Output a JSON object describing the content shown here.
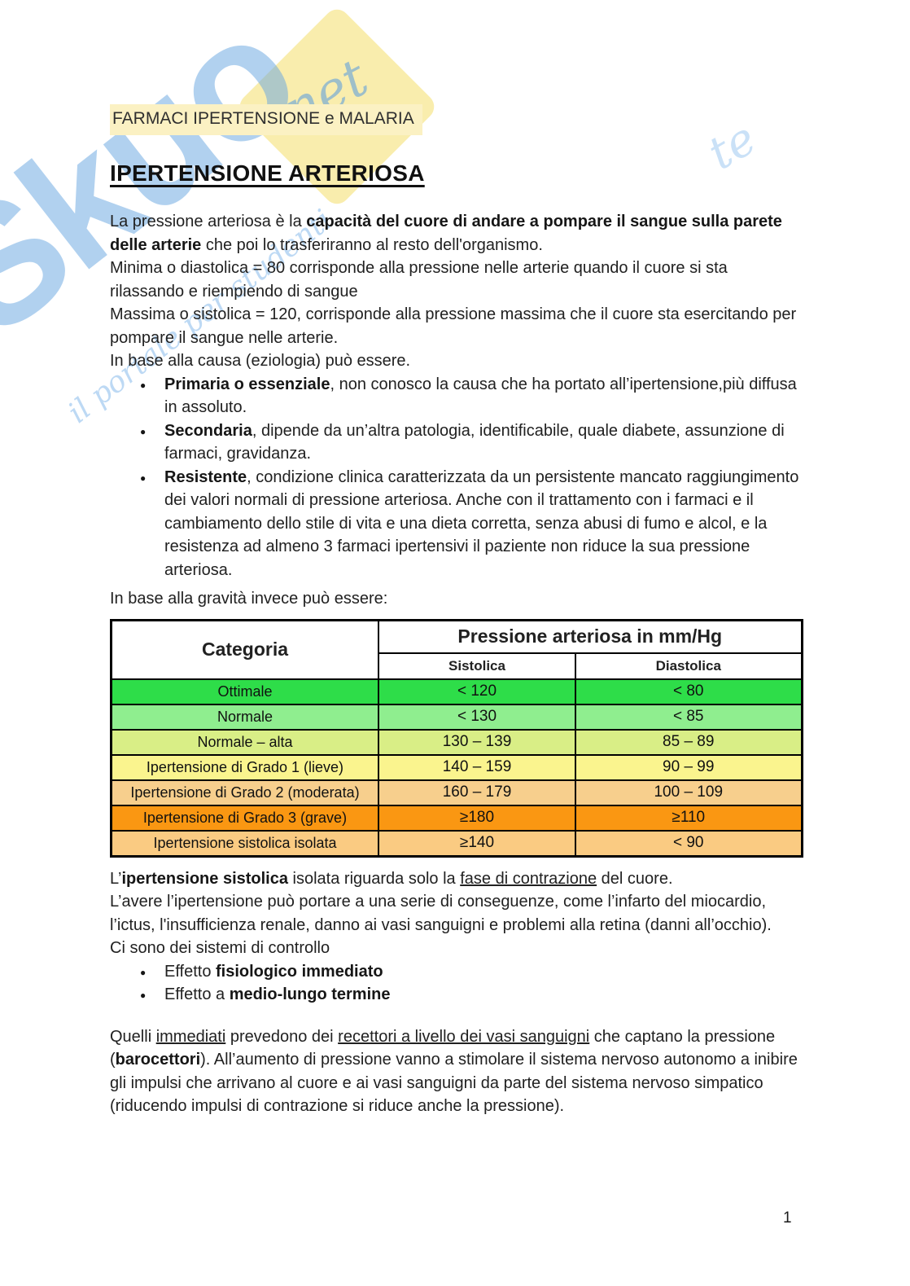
{
  "header": {
    "title": "FARMACI IPERTENSIONE e MALARIA",
    "heading": "IPERTENSIONE ARTERIOSA"
  },
  "intro": {
    "p1_a": "La pressione arteriosa è la ",
    "p1_b": "capacità del cuore di andare a pompare il sangue sulla parete delle arterie",
    "p1_c": " che poi lo trasferiranno al resto dell'organismo.",
    "p2": "Minima o diastolica = 80 corrisponde alla pressione nelle arterie quando il cuore si sta rilassando e riempiendo di sangue",
    "p3": "Massima o sistolica = 120, corrisponde alla pressione massima che il cuore sta esercitando per pompare il sangue nelle arterie.",
    "p4": "In base alla causa (eziologia) può essere."
  },
  "etiology_bullets": {
    "b1_bold": "Primaria o essenziale",
    "b1_rest": ", non conosco la causa che ha portato all’ipertensione,più diffusa in assoluto.",
    "b2_bold": "Secondaria",
    "b2_rest": ", dipende da un’altra patologia, identificabile, quale diabete, assunzione di farmaci, gravidanza.",
    "b3_bold": "Resistente",
    "b3_rest": ", condizione clinica caratterizzata da un persistente mancato raggiungimento dei valori normali di pressione arteriosa. Anche con il trattamento con i farmaci e il cambiamento dello stile di vita e una dieta corretta, senza abusi di fumo e alcol, e la resistenza ad almeno 3 farmaci ipertensivi il paziente non riduce la sua pressione arteriosa."
  },
  "gravity_intro": "In base alla gravità invece può essere:",
  "table": {
    "header": {
      "categoria": "Categoria",
      "pressure": "Pressione arteriosa in mm/Hg",
      "sistolica": "Sistolica",
      "diastolica": "Diastolica"
    },
    "rows": [
      {
        "label": "Ottimale",
        "sys": "< 120",
        "dia": "< 80",
        "color": "#2edd49",
        "style": "background:#2edd49"
      },
      {
        "label": "Normale",
        "sys": "< 130",
        "dia": "< 85",
        "color": "#8fee8f",
        "style": "background:#8fee8f"
      },
      {
        "label": "Normale – alta",
        "sys": "130 – 139",
        "dia": "85 – 89",
        "color": "#d9ee86",
        "style": "background:#d9ee86"
      },
      {
        "label": "Ipertensione di Grado 1 (lieve)",
        "sys": "140 – 159",
        "dia": "90 – 99",
        "color": "#faf48e",
        "style": "background:#faf48e"
      },
      {
        "label": "Ipertensione di Grado 2 (moderata)",
        "sys": "160 – 179",
        "dia": "100 – 109",
        "color": "#f7cf8d",
        "style": "background:#f7cf8d"
      },
      {
        "label": "Ipertensione di Grado 3 (grave)",
        "sys": "≥180",
        "dia": "≥110",
        "color": "#fa9712",
        "style": "background:#fa9712"
      },
      {
        "label": "Ipertensione sistolica isolata",
        "sys": "≥140",
        "dia": "< 90",
        "color": "#facb82",
        "style": "background:#facb82"
      }
    ]
  },
  "after_table": {
    "p1_a": "L’",
    "p1_b": "ipertensione sistolica",
    "p1_c": " isolata riguarda solo la ",
    "p1_d": "fase di contrazione",
    "p1_e": " del cuore.",
    "p2": "L’avere l’ipertensione può portare a una serie di conseguenze, come l’infarto del miocardio, l’ictus, l'insufficienza renale, danno ai vasi sanguigni e problemi alla retina (danni all’occhio).",
    "p3": "Ci sono dei sistemi di controllo"
  },
  "control_bullets": {
    "e1_a": "Effetto ",
    "e1_b": "fisiologico immediato",
    "e2_a": "Effetto a ",
    "e2_b": "medio-lungo termine"
  },
  "final": {
    "s0": "Quelli ",
    "s1": "immediati",
    "s2": " prevedono dei ",
    "s3": "recettori a livello dei vasi sanguigni",
    "s4": " che captano la pressione (",
    "s5": "barocettori",
    "s6": "). All’aumento di pressione vanno a stimolare il sistema nervoso autonomo a inibire gli impulsi che arrivano al cuore e ai vasi sanguigni da parte del sistema nervoso simpatico (riducendo impulsi di contrazione si riduce anche la pressione)."
  },
  "watermark": {
    "brand": "Skuo",
    "net": "net",
    "slogan": "il portale per studenti",
    "swirl": "te",
    "blue": "#6aa6e0",
    "yellow": "#f9eca9"
  },
  "page_number": "1"
}
